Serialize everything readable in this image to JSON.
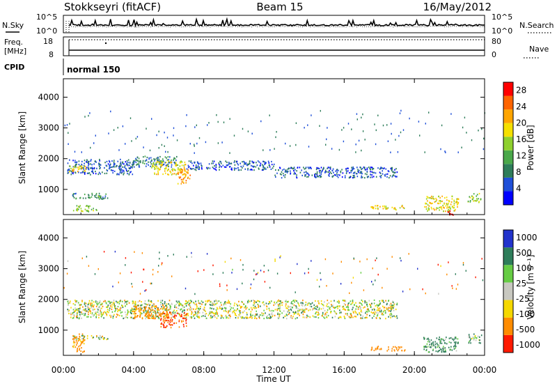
{
  "header": {
    "station": "Stokkseyri (fitACF)",
    "beam": "Beam 15",
    "date": "16/May/2012"
  },
  "noise_panel": {
    "left_label": "N.Sky",
    "left_tick_top": "10^5",
    "left_tick_bottom": "10^0",
    "right_label": "N.Search",
    "right_tick_top": "10^5",
    "right_tick_bottom": "10^0"
  },
  "freq_panel": {
    "left_label_line1": "Freq.",
    "left_label_line2": "[MHz]",
    "left_tick_top": "18",
    "left_tick_bottom": "8",
    "right_label": "Nave",
    "right_tick_top": "80",
    "right_tick_bottom": "0"
  },
  "cpid_panel": {
    "label": "CPID",
    "mode": "normal 150"
  },
  "power_panel": {
    "ylabel": "Slant Range [km]",
    "yticks": [
      "1000",
      "2000",
      "3000",
      "4000"
    ],
    "colorbar_label": "Power [dB]",
    "colorbar_ticks": [
      "4",
      "8",
      "12",
      "16",
      "20",
      "24",
      "28"
    ]
  },
  "velocity_panel": {
    "ylabel": "Slant Range [km]",
    "yticks": [
      "1000",
      "2000",
      "3000",
      "4000"
    ],
    "colorbar_label": "Velocity [m s⁻¹]",
    "colorbar_ticks": [
      "1000",
      "500",
      "100",
      "25",
      "-25",
      "-100",
      "-500",
      "-1000"
    ]
  },
  "time_axis": {
    "label": "Time UT",
    "ticks": [
      "00:00",
      "04:00",
      "08:00",
      "12:00",
      "16:00",
      "20:00",
      "00:00"
    ]
  },
  "chart_data": [
    {
      "type": "heatmap",
      "name": "power",
      "xlabel": "Time UT",
      "ylabel": "Slant Range [km]",
      "xlim": [
        0,
        24
      ],
      "ylim": [
        180,
        4600
      ],
      "colorbar": {
        "label": "Power [dB]",
        "range": [
          0,
          30
        ],
        "ticks": [
          4,
          8,
          12,
          16,
          20,
          24,
          28
        ]
      },
      "features": [
        {
          "hours": [
            0.2,
            4.0
          ],
          "range_km": [
            1500,
            2000
          ],
          "power_db": 6
        },
        {
          "hours": [
            0.3,
            1.3
          ],
          "range_km": [
            1600,
            1800
          ],
          "power_db": 20
        },
        {
          "hours": [
            4.0,
            6.5
          ],
          "range_km": [
            1750,
            2100
          ],
          "power_db": 8
        },
        {
          "hours": [
            5.0,
            7.0
          ],
          "range_km": [
            1500,
            1950
          ],
          "power_db": 18
        },
        {
          "hours": [
            6.5,
            7.2
          ],
          "range_km": [
            1200,
            1700
          ],
          "power_db": 22
        },
        {
          "hours": [
            7.0,
            12.0
          ],
          "range_km": [
            1650,
            1950
          ],
          "power_db": 6
        },
        {
          "hours": [
            12.0,
            19.0
          ],
          "range_km": [
            1400,
            1750
          ],
          "power_db": 6
        },
        {
          "hours": [
            0.5,
            2.5
          ],
          "range_km": [
            700,
            900
          ],
          "power_db": 10
        },
        {
          "hours": [
            0.5,
            2.0
          ],
          "range_km": [
            300,
            500
          ],
          "power_db": 14
        },
        {
          "hours": [
            17.5,
            19.5
          ],
          "range_km": [
            350,
            500
          ],
          "power_db": 18
        },
        {
          "hours": [
            20.5,
            22.5
          ],
          "range_km": [
            300,
            800
          ],
          "power_db": 18
        },
        {
          "hours": [
            21.8,
            22.2
          ],
          "range_km": [
            180,
            350
          ],
          "power_db": 28
        },
        {
          "hours": [
            23.0,
            23.8
          ],
          "range_km": [
            600,
            900
          ],
          "power_db": 14
        }
      ]
    },
    {
      "type": "heatmap",
      "name": "velocity",
      "xlabel": "Time UT",
      "ylabel": "Slant Range [km]",
      "xlim": [
        0,
        24
      ],
      "ylim": [
        180,
        4600
      ],
      "colorbar": {
        "label": "Velocity [m s⁻¹]",
        "range": [
          -1000,
          1000
        ],
        "ticks": [
          1000,
          500,
          100,
          25,
          -25,
          -100,
          -500,
          -1000
        ]
      },
      "features": [
        {
          "hours": [
            0.2,
            19.0
          ],
          "range_km": [
            1400,
            2000
          ],
          "velocity": 0
        },
        {
          "hours": [
            4.0,
            6.0
          ],
          "range_km": [
            1400,
            1800
          ],
          "velocity": -300
        },
        {
          "hours": [
            5.5,
            7.0
          ],
          "range_km": [
            1100,
            1600
          ],
          "velocity": -500
        },
        {
          "hours": [
            0.5,
            2.5
          ],
          "range_km": [
            700,
            850
          ],
          "velocity": 0
        },
        {
          "hours": [
            0.5,
            1.2
          ],
          "range_km": [
            300,
            900
          ],
          "velocity": -200
        },
        {
          "hours": [
            17.5,
            19.5
          ],
          "range_km": [
            350,
            500
          ],
          "velocity": -300
        },
        {
          "hours": [
            20.5,
            22.5
          ],
          "range_km": [
            300,
            800
          ],
          "velocity": 150
        },
        {
          "hours": [
            23.0,
            23.8
          ],
          "range_km": [
            600,
            900
          ],
          "velocity": 100
        }
      ]
    }
  ]
}
